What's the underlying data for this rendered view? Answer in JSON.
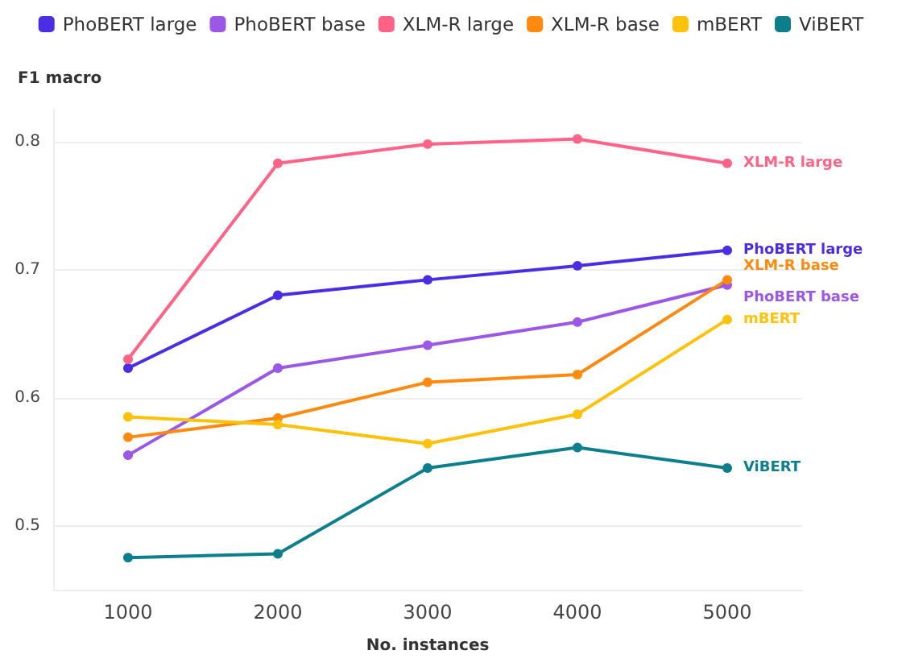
{
  "chart_data": {
    "type": "line",
    "xlabel": "No. instances",
    "ylabel": "F1 macro",
    "x": [
      1000,
      2000,
      3000,
      4000,
      5000
    ],
    "series": [
      {
        "name": "PhoBERT large",
        "color": "#4b2ee3",
        "values": [
          0.623,
          0.68,
          0.692,
          0.703,
          0.715
        ]
      },
      {
        "name": "PhoBERT base",
        "color": "#9b57e6",
        "values": [
          0.555,
          0.623,
          0.641,
          0.659,
          0.688
        ]
      },
      {
        "name": "XLM-R large",
        "color": "#ff6385",
        "values": [
          0.63,
          0.783,
          0.798,
          0.802,
          0.783
        ]
      },
      {
        "name": "XLM-R base",
        "color": "#ff8a0f",
        "values": [
          0.569,
          0.584,
          0.612,
          0.618,
          0.692
        ]
      },
      {
        "name": "mBERT",
        "color": "#ffc20a",
        "values": [
          0.585,
          0.579,
          0.564,
          0.587,
          0.661
        ]
      },
      {
        "name": "ViBERT",
        "color": "#0d7f8c",
        "values": [
          0.475,
          0.478,
          0.545,
          0.561,
          0.545
        ]
      }
    ],
    "xlim": [
      500,
      5500
    ],
    "xticks": [
      1000,
      2000,
      3000,
      4000,
      5000
    ],
    "ylim": [
      0.45,
      0.825
    ],
    "yticks": [
      0.5,
      0.6,
      0.7,
      0.8
    ],
    "grid": "y",
    "legend": "top",
    "marker": "circle",
    "line_style": "solid"
  }
}
